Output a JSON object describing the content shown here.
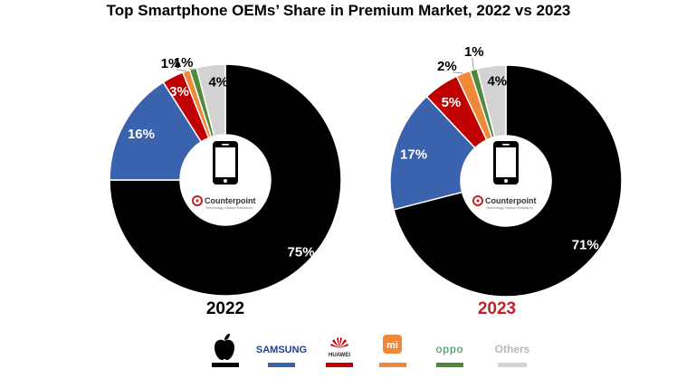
{
  "title": "Top Smartphone OEMs’ Share in Premium Market, 2022 vs 2023",
  "watermark": {
    "name": "Counterpoint",
    "tagline": "Technology Market Research"
  },
  "colors": {
    "Apple": "#000000",
    "Samsung": "#3b62ad",
    "Huawei": "#c00000",
    "Xiaomi": "#f0883a",
    "Oppo": "#4f8a3c",
    "Others": "#d3d3d3",
    "year2023": "#c0222a"
  },
  "legend": [
    {
      "name": "Apple",
      "icon": "apple-logo-icon"
    },
    {
      "name": "Samsung",
      "text": "SAMSUNG"
    },
    {
      "name": "Huawei",
      "text": "HUAWEI",
      "icon": "huawei-logo-icon"
    },
    {
      "name": "Xiaomi",
      "text": "mi",
      "icon": "xiaomi-logo-icon"
    },
    {
      "name": "Oppo",
      "text": "oppo"
    },
    {
      "name": "Others",
      "text": "Others"
    }
  ],
  "chart_data": [
    {
      "type": "pie",
      "year": "2022",
      "slices": [
        {
          "name": "Apple",
          "value": 75,
          "label": "75%"
        },
        {
          "name": "Samsung",
          "value": 16,
          "label": "16%"
        },
        {
          "name": "Huawei",
          "value": 3,
          "label": "3%"
        },
        {
          "name": "Xiaomi",
          "value": 1,
          "label": "1%"
        },
        {
          "name": "Oppo",
          "value": 1,
          "label": "1%"
        },
        {
          "name": "Others",
          "value": 4,
          "label": "4%"
        }
      ]
    },
    {
      "type": "pie",
      "year": "2023",
      "slices": [
        {
          "name": "Apple",
          "value": 71,
          "label": "71%"
        },
        {
          "name": "Samsung",
          "value": 17,
          "label": "17%"
        },
        {
          "name": "Huawei",
          "value": 5,
          "label": "5%"
        },
        {
          "name": "Xiaomi",
          "value": 2,
          "label": "2%"
        },
        {
          "name": "Oppo",
          "value": 1,
          "label": "1%"
        },
        {
          "name": "Others",
          "value": 4,
          "label": "4%"
        }
      ]
    }
  ]
}
